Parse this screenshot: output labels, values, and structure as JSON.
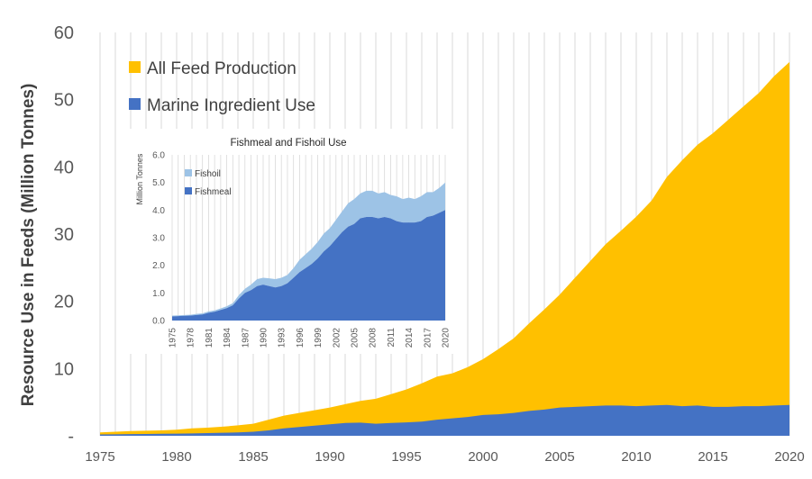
{
  "colors": {
    "feed": "#FFC000",
    "marine": "#4472C4",
    "fishoil": "#9DC3E6",
    "fishmeal": "#4472C4",
    "grid": "#D9D9D9",
    "axis_text": "#595959",
    "ylabel_text": "#404040"
  },
  "chart_data": [
    {
      "type": "area",
      "title": "",
      "xlabel": "",
      "ylabel": "Resource Use in Feeds (Million Tonnes)",
      "xlim": [
        1975,
        2020
      ],
      "ylim": [
        0,
        60
      ],
      "x_ticks": [
        "1975",
        "1980",
        "1985",
        "1990",
        "1995",
        "2000",
        "2005",
        "2010",
        "2015",
        "2020"
      ],
      "y_ticks": [
        "-",
        "10",
        "20",
        "30",
        "40",
        "50",
        "60"
      ],
      "grid": "vertical",
      "legend": "top-left",
      "x": [
        1975,
        1976,
        1977,
        1978,
        1979,
        1980,
        1981,
        1982,
        1983,
        1984,
        1985,
        1986,
        1987,
        1988,
        1989,
        1990,
        1991,
        1992,
        1993,
        1994,
        1995,
        1996,
        1997,
        1998,
        1999,
        2000,
        2001,
        2002,
        2003,
        2004,
        2005,
        2006,
        2007,
        2008,
        2009,
        2010,
        2011,
        2012,
        2013,
        2014,
        2015,
        2016,
        2017,
        2018,
        2019,
        2020
      ],
      "series": [
        {
          "name": "All Feed Production",
          "values": [
            0.5,
            0.6,
            0.7,
            0.75,
            0.8,
            0.9,
            1.1,
            1.2,
            1.35,
            1.55,
            1.8,
            2.4,
            3.0,
            3.4,
            3.8,
            4.2,
            4.7,
            5.2,
            5.5,
            6.2,
            6.9,
            7.8,
            8.8,
            9.3,
            10.2,
            11.4,
            12.9,
            14.5,
            16.7,
            18.8,
            21.0,
            23.5,
            26.0,
            28.5,
            30.5,
            32.6,
            35.0,
            38.5,
            41.0,
            43.3,
            45.0,
            47.0,
            49.0,
            51.0,
            53.5,
            55.6
          ]
        },
        {
          "name": "Marine Ingredient Use",
          "values": [
            0.2,
            0.22,
            0.25,
            0.27,
            0.3,
            0.32,
            0.35,
            0.4,
            0.45,
            0.5,
            0.6,
            0.8,
            1.1,
            1.3,
            1.5,
            1.7,
            1.9,
            1.95,
            1.8,
            1.9,
            2.0,
            2.1,
            2.4,
            2.6,
            2.8,
            3.1,
            3.2,
            3.4,
            3.7,
            3.9,
            4.2,
            4.3,
            4.4,
            4.5,
            4.5,
            4.4,
            4.5,
            4.6,
            4.4,
            4.5,
            4.3,
            4.3,
            4.4,
            4.4,
            4.5,
            4.6
          ]
        }
      ]
    },
    {
      "type": "area",
      "title": "Fishmeal and Fishoil Use",
      "xlabel": "",
      "ylabel": "Million Tonnes",
      "xlim": [
        1975,
        2020
      ],
      "ylim": [
        0,
        6
      ],
      "x_ticks": [
        "1975",
        "1978",
        "1981",
        "1984",
        "1987",
        "1990",
        "1993",
        "1996",
        "1999",
        "2002",
        "2005",
        "2008",
        "2011",
        "2014",
        "2017",
        "2020"
      ],
      "y_ticks": [
        "0.0",
        "1.0",
        "2.0",
        "3.0",
        "4.0",
        "5.0",
        "6.0"
      ],
      "grid": "vertical",
      "legend": "top-left",
      "x": [
        1975,
        1976,
        1977,
        1978,
        1979,
        1980,
        1981,
        1982,
        1983,
        1984,
        1985,
        1986,
        1987,
        1988,
        1989,
        1990,
        1991,
        1992,
        1993,
        1994,
        1995,
        1996,
        1997,
        1998,
        1999,
        2000,
        2001,
        2002,
        2003,
        2004,
        2005,
        2006,
        2007,
        2008,
        2009,
        2010,
        2011,
        2012,
        2013,
        2014,
        2015,
        2016,
        2017,
        2018,
        2019,
        2020
      ],
      "series": [
        {
          "name": "Fishmeal",
          "values": [
            0.15,
            0.16,
            0.17,
            0.18,
            0.2,
            0.22,
            0.28,
            0.32,
            0.38,
            0.45,
            0.55,
            0.8,
            1.0,
            1.1,
            1.25,
            1.3,
            1.25,
            1.2,
            1.25,
            1.35,
            1.55,
            1.75,
            1.9,
            2.05,
            2.25,
            2.5,
            2.7,
            2.95,
            3.2,
            3.4,
            3.5,
            3.7,
            3.75,
            3.75,
            3.7,
            3.75,
            3.7,
            3.6,
            3.55,
            3.55,
            3.55,
            3.6,
            3.75,
            3.8,
            3.9,
            4.0
          ]
        },
        {
          "name": "Fishoil",
          "values": [
            0.03,
            0.03,
            0.03,
            0.03,
            0.04,
            0.04,
            0.05,
            0.05,
            0.06,
            0.07,
            0.08,
            0.12,
            0.15,
            0.2,
            0.25,
            0.25,
            0.28,
            0.3,
            0.3,
            0.3,
            0.35,
            0.45,
            0.5,
            0.55,
            0.6,
            0.65,
            0.65,
            0.7,
            0.75,
            0.85,
            0.9,
            0.9,
            0.95,
            0.95,
            0.9,
            0.9,
            0.85,
            0.9,
            0.85,
            0.9,
            0.85,
            0.9,
            0.9,
            0.85,
            0.9,
            1.0
          ]
        }
      ]
    }
  ]
}
